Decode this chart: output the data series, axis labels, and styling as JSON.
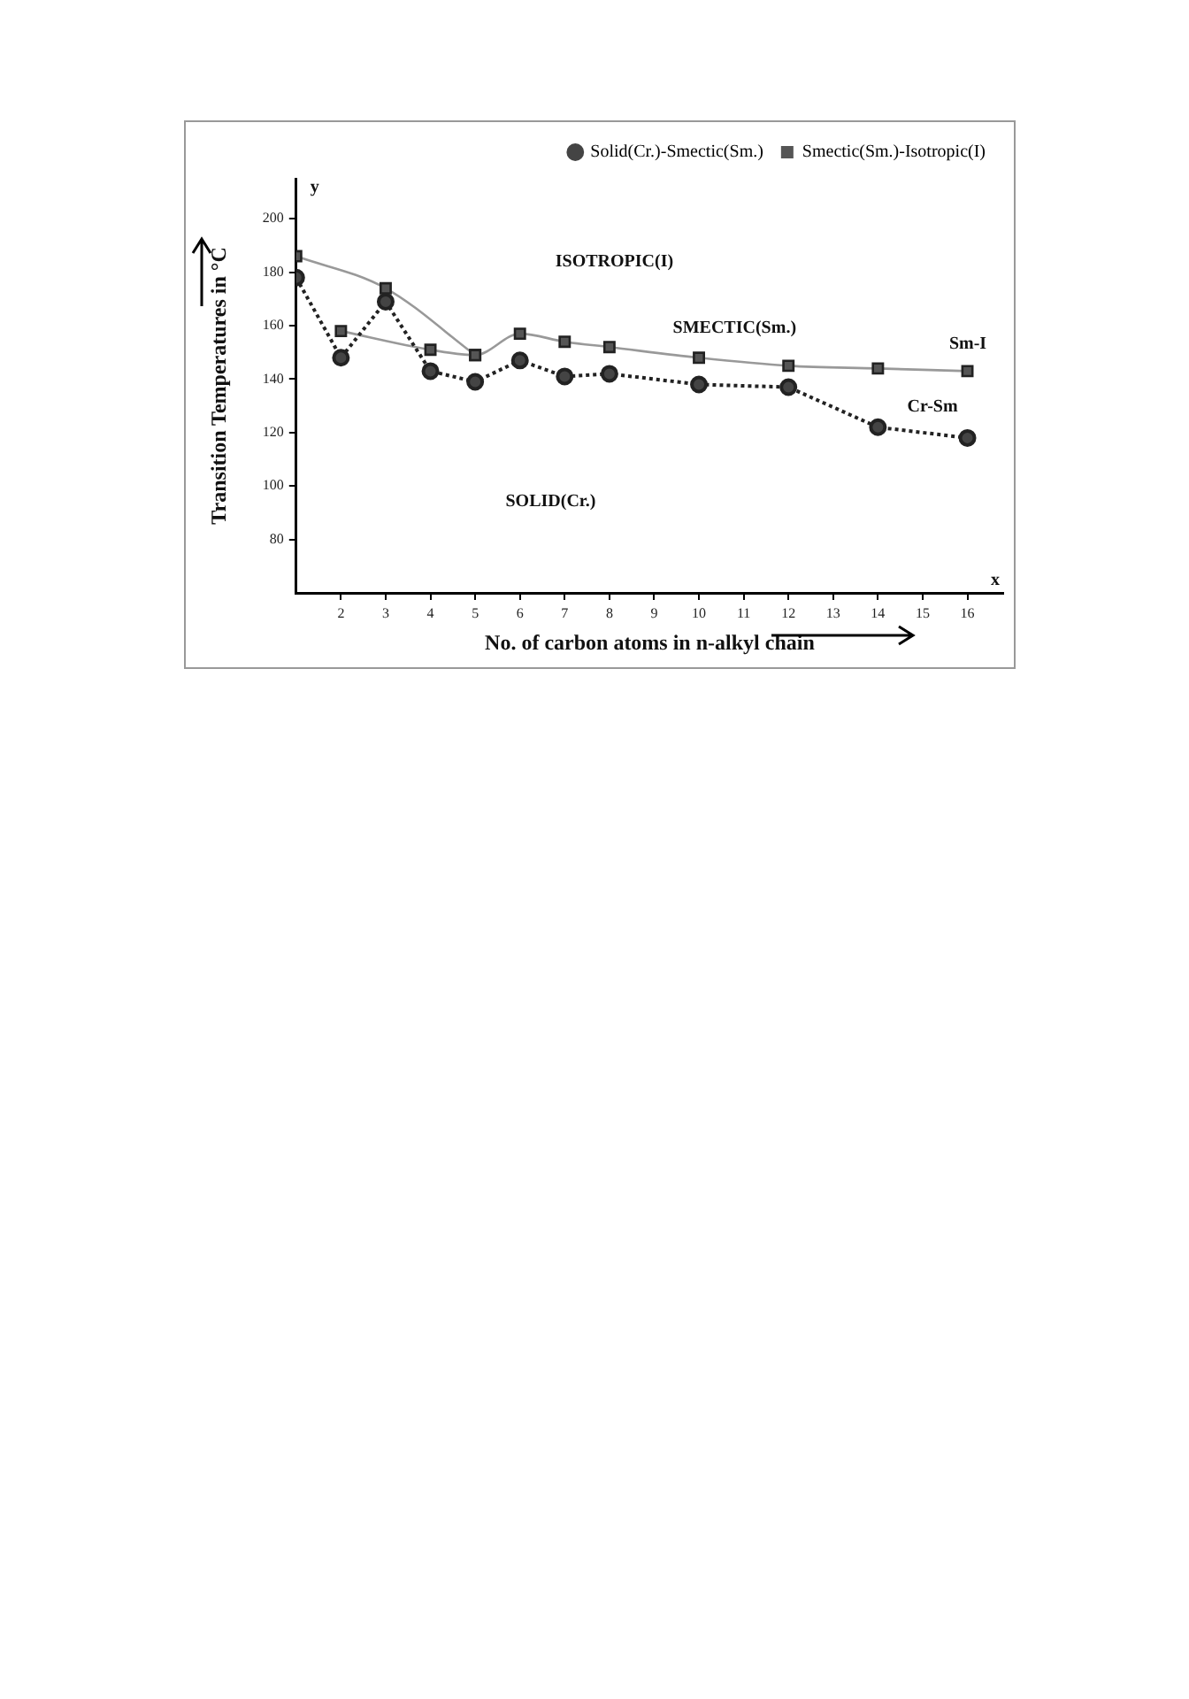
{
  "chart_data": {
    "type": "line",
    "xlabel": "No. of carbon atoms in n-alkyl chain",
    "ylabel": "Transition Temperatures in °C",
    "xlim": [
      1,
      16.8
    ],
    "ylim": [
      60,
      215
    ],
    "xticks": [
      2,
      3,
      4,
      5,
      6,
      7,
      8,
      9,
      10,
      11,
      12,
      13,
      14,
      15,
      16
    ],
    "yticks": [
      80,
      100,
      120,
      140,
      160,
      180,
      200
    ],
    "grid": false,
    "legend": "top right",
    "series": [
      {
        "name": "Solid(Cr.)-Smectic(Sm.)",
        "color": "#444444",
        "marker": "circle",
        "line_style": "dotted",
        "x": [
          1,
          2,
          3,
          4,
          5,
          6,
          7,
          8,
          10,
          12,
          14,
          16
        ],
        "values": [
          178,
          148,
          169,
          143,
          139,
          147,
          141,
          142,
          138,
          137,
          122,
          118
        ]
      },
      {
        "name": "Smectic(Sm.)-Isotropic(I)",
        "color": "#555555",
        "marker": "square",
        "line_style": "solid",
        "x": [
          2,
          4,
          5,
          6,
          7,
          8,
          10,
          12,
          14,
          16
        ],
        "values": [
          158,
          151,
          149,
          157,
          154,
          152,
          148,
          145,
          144,
          143
        ]
      },
      {
        "color": "#555555",
        "marker": "square",
        "line_style": "solid",
        "x": [
          1,
          3,
          5
        ],
        "values": [
          186,
          174,
          149
        ]
      }
    ],
    "annotations": [
      "ISOTROPIC(I)",
      "SMECTIC(Sm.)",
      "SOLID(Cr.)",
      "Sm-I",
      "Cr-Sm",
      "x",
      "y"
    ]
  }
}
